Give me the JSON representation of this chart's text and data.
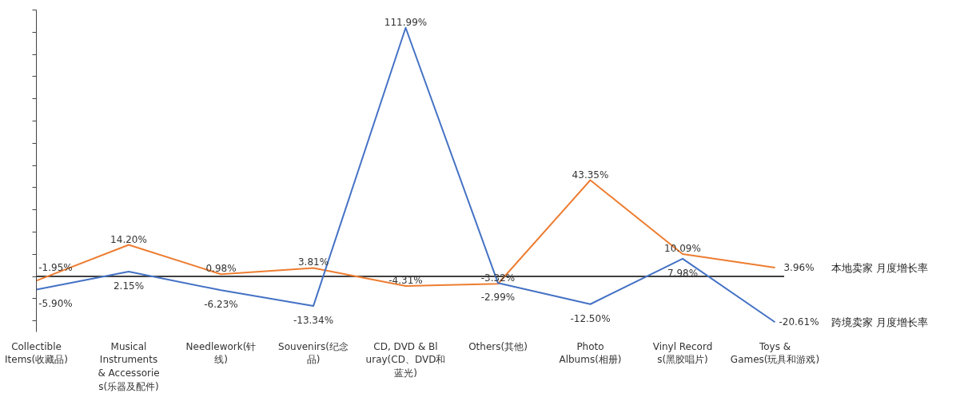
{
  "chart_data": {
    "type": "line",
    "categories": [
      "Collectible Items(收藏品)",
      "Musical Instruments & Accessories(乐器及配件)",
      "Needlework(针线)",
      "Souvenirs(纪念品)",
      "CD, DVD & Bluray(CD、DVD和蓝光)",
      "Others(其他)",
      "Photo Albums(相册)",
      "Vinyl Records(黑胶唱片)",
      "Toys & Games(玩具和游戏)"
    ],
    "series": [
      {
        "name": "本地卖家 月度增长率",
        "color": "#ed7d31",
        "values": [
          -1.95,
          14.2,
          0.98,
          3.81,
          -4.31,
          -3.32,
          43.35,
          10.09,
          3.96
        ],
        "value_labels": [
          "-1.95%",
          "14.20%",
          "0.98%",
          "3.81%",
          "-4.31%",
          "-3.32%",
          "43.35%",
          "10.09%",
          "3.96%"
        ]
      },
      {
        "name": "跨境卖家 月度增长率",
        "color": "#4472c4",
        "values": [
          -5.9,
          2.15,
          -6.23,
          -13.34,
          111.99,
          -2.99,
          -12.5,
          7.98,
          -20.61
        ],
        "value_labels": [
          "-5.90%",
          "2.15%",
          "-6.23%",
          "-13.34%",
          "111.99%",
          "-2.99%",
          "-12.50%",
          "7.98%",
          "-20.61%"
        ]
      }
    ],
    "ylim": [
      -25,
      120
    ],
    "yticks": [
      {
        "value": -20,
        "label": null
      },
      {
        "value": -10,
        "label": null
      },
      {
        "value": 0,
        "label": null
      },
      {
        "value": 10,
        "label": null
      },
      {
        "value": 20,
        "label": null
      },
      {
        "value": 30,
        "label": null
      },
      {
        "value": 40,
        "label": null
      },
      {
        "value": 50,
        "label": null
      },
      {
        "value": 60,
        "label": null
      },
      {
        "value": 70,
        "label": null
      },
      {
        "value": 80,
        "label": null
      },
      {
        "value": 90,
        "label": null
      },
      {
        "value": 100,
        "label": null
      },
      {
        "value": 110,
        "label": null
      },
      {
        "value": 120,
        "label": null
      }
    ],
    "ref_lines": [
      {
        "axis": "y",
        "value": 0,
        "color": "#000000"
      }
    ],
    "tick_labels": "x",
    "grid": false,
    "marker": "none",
    "line_style": "solid"
  }
}
